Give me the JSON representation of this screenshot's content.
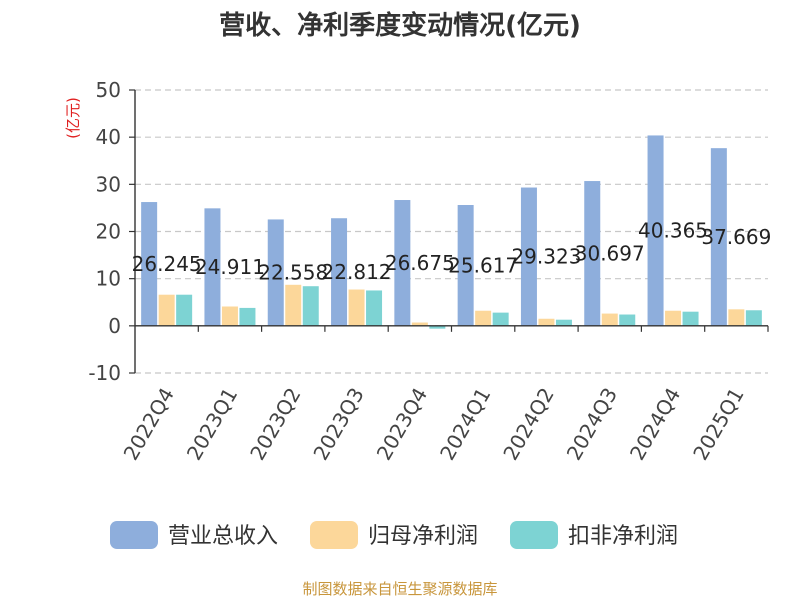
{
  "page": {
    "source": "制图数据来自恒生聚源数据库",
    "source_color": "#c8963c"
  },
  "chart_data": {
    "type": "bar",
    "title": "营收、净利季度变动情况(亿元)",
    "unit_label": "(亿元)",
    "unit_color": "#e02020",
    "categories": [
      "2022Q4",
      "2023Q1",
      "2023Q2",
      "2023Q3",
      "2023Q4",
      "2024Q1",
      "2024Q2",
      "2024Q3",
      "2024Q4",
      "2025Q1"
    ],
    "ylim": [
      -10,
      50
    ],
    "yticks": [
      -10,
      0,
      10,
      20,
      30,
      40,
      50
    ],
    "grid": true,
    "legend_position": "bottom",
    "data_labels": [
      "26.245",
      "24.911",
      "22.558",
      "22.812",
      "26.675",
      "25.617",
      "29.323",
      "30.697",
      "40.365",
      "37.669"
    ],
    "series": [
      {
        "name": "营业总收入",
        "color": "#8eaedc",
        "values": [
          26.245,
          24.911,
          22.558,
          22.812,
          26.675,
          25.617,
          29.323,
          30.697,
          40.365,
          37.669
        ]
      },
      {
        "name": "归母净利润",
        "color": "#fcd79a",
        "values": [
          6.6,
          4.1,
          8.7,
          7.7,
          0.7,
          3.2,
          1.5,
          2.6,
          3.2,
          3.5
        ]
      },
      {
        "name": "扣非净利润",
        "color": "#7dd3d3",
        "values": [
          6.6,
          3.8,
          8.4,
          7.5,
          -0.6,
          2.8,
          1.3,
          2.4,
          3.0,
          3.3
        ]
      }
    ]
  }
}
